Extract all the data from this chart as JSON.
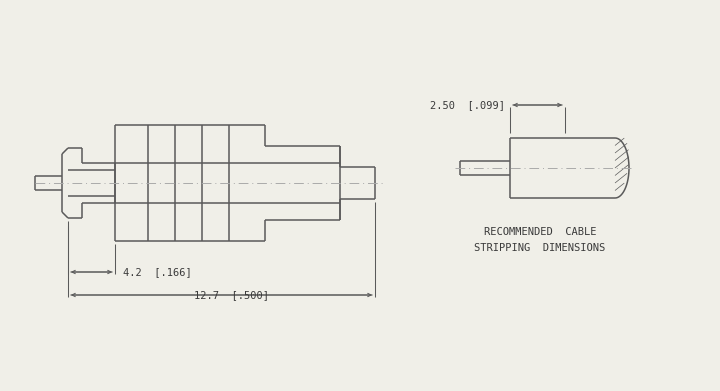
{
  "bg_color": "#f0efe8",
  "line_color": "#5a5a5a",
  "dim_color": "#5a5a5a",
  "text_color": "#3a3a3a",
  "lw": 1.1,
  "dim_lw": 0.75,
  "centerline_color": "#aaaaaa",
  "label_42": "4.2  [.166]",
  "label_127": "12.7  [.500]",
  "label_250": "2.50  [.099]",
  "rec_cable_line1": "RECOMMENDED  CABLE",
  "rec_cable_line2": "STRIPPING  DIMENSIONS"
}
